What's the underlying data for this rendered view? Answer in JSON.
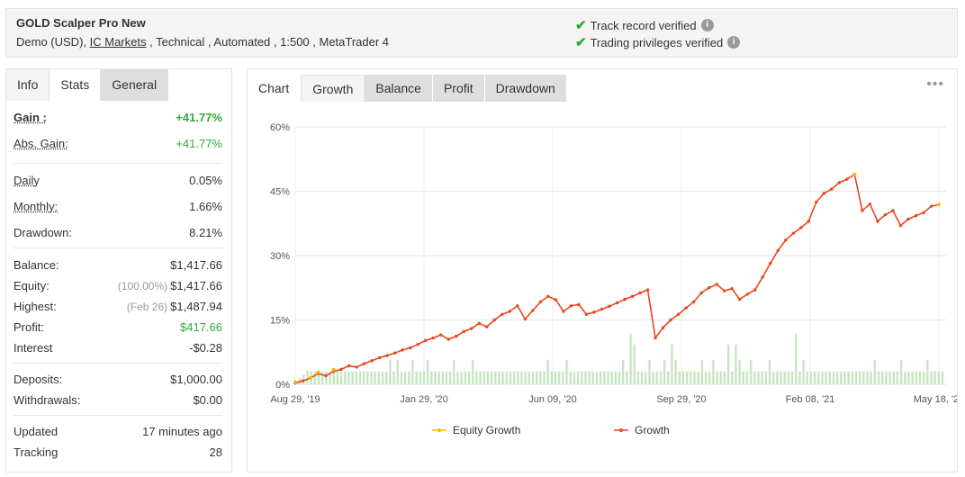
{
  "header": {
    "title": "GOLD Scalper Pro New",
    "account_prefix": "Demo (USD),",
    "broker_link": "IC Markets",
    "account_suffix": ", Technical , Automated , 1:500 , MetaTrader 4",
    "verif_track": "Track record verified",
    "verif_privileges": "Trading privileges verified"
  },
  "left_tabs": {
    "info": "Info",
    "stats": "Stats",
    "general": "General"
  },
  "stats": {
    "gain_label": "Gain :",
    "gain_value": "+41.77%",
    "abs_gain_label": "Abs. Gain:",
    "abs_gain_value": "+41.77%",
    "daily_label": "Daily",
    "daily_value": "0.05%",
    "monthly_label": "Monthly:",
    "monthly_value": "1.66%",
    "drawdown_label": "Drawdown:",
    "drawdown_value": "8.21%",
    "balance_label": "Balance:",
    "balance_value": "$1,417.66",
    "equity_label": "Equity:",
    "equity_note": "(100.00%)",
    "equity_value": "$1,417.66",
    "highest_label": "Highest:",
    "highest_note": "(Feb 26)",
    "highest_value": "$1,487.94",
    "profit_label": "Profit:",
    "profit_value": "$417.66",
    "interest_label": "Interest",
    "interest_value": "-$0.28",
    "deposits_label": "Deposits:",
    "deposits_value": "$1,000.00",
    "withdrawals_label": "Withdrawals:",
    "withdrawals_value": "$0.00",
    "updated_label": "Updated",
    "updated_value": "17 minutes ago",
    "tracking_label": "Tracking",
    "tracking_value": "28"
  },
  "chart_tabs": {
    "chart": "Chart",
    "growth": "Growth",
    "balance": "Balance",
    "profit": "Profit",
    "drawdown": "Drawdown"
  },
  "menu_icon": "•••",
  "colors": {
    "growth": "#e8471c",
    "equity": "#f5b800",
    "bars": "#c5e6bf",
    "positive": "#2eaa3c"
  },
  "chart_data": {
    "type": "line",
    "title": "",
    "xlabel": "",
    "ylabel": "",
    "ylim": [
      0,
      60
    ],
    "yticks": [
      "0%",
      "15%",
      "30%",
      "45%",
      "60%"
    ],
    "xtick_labels": [
      "Aug 29, '19",
      "Jan 29, '20",
      "Jun 09, '20",
      "Sep 29, '20",
      "Feb 08, '21",
      "May 18, '21"
    ],
    "legend_position": "bottom",
    "grid": true,
    "series": [
      {
        "name": "Equity Growth",
        "values": [
          0.5,
          1.5,
          2.8,
          3.4,
          48.9,
          41.9
        ]
      },
      {
        "name": "Growth",
        "values": [
          0.3,
          0.8,
          1.5,
          2.5,
          2.0,
          3.0,
          3.5,
          4.3,
          4.0,
          4.8,
          5.5,
          6.2,
          6.7,
          7.3,
          8.0,
          8.5,
          9.3,
          10.2,
          10.8,
          11.5,
          10.5,
          11.2,
          12.3,
          13.0,
          14.2,
          13.4,
          15.0,
          16.3,
          17.0,
          18.3,
          15.2,
          17.2,
          19.2,
          20.5,
          19.7,
          17.0,
          18.3,
          18.6,
          16.3,
          16.8,
          17.5,
          18.2,
          19.0,
          19.8,
          20.5,
          21.3,
          22.0,
          10.8,
          13.2,
          15.0,
          16.3,
          17.8,
          19.2,
          21.3,
          22.5,
          23.3,
          21.8,
          22.3,
          19.8,
          21.0,
          22.0,
          25.0,
          28.2,
          31.2,
          33.6,
          35.2,
          36.5,
          38.0,
          42.5,
          44.5,
          45.5,
          47.0,
          47.8,
          48.9,
          40.5,
          42.0,
          38.0,
          39.5,
          40.5,
          37.0,
          38.5,
          39.3,
          40.0,
          41.5,
          41.9
        ]
      }
    ],
    "trade_bars": [
      1.5,
      2.2,
      3.2,
      3.0,
      3.0,
      3.0,
      3.0,
      3.0,
      3.0,
      3.0,
      3.0,
      3.0,
      3.0,
      3.0,
      3.0,
      3.0,
      3.0,
      3.0,
      3.0,
      3.0,
      3.0,
      3.0,
      3.0,
      3.0,
      5.7,
      3.0,
      5.7,
      3.0,
      3.0,
      3.0,
      5.7,
      3.0,
      3.0,
      3.0,
      5.7,
      3.0,
      3.0,
      3.0,
      3.0,
      3.0,
      3.0,
      5.7,
      3.0,
      3.0,
      3.0,
      3.0,
      5.7,
      3.0,
      3.0,
      3.0,
      3.0,
      3.0,
      3.0,
      3.0,
      3.0,
      3.0,
      3.0,
      3.0,
      3.0,
      3.0,
      3.0,
      3.0,
      3.0,
      3.0,
      3.0,
      3.0,
      5.7,
      3.0,
      3.0,
      3.0,
      3.0,
      5.7,
      3.0,
      3.0,
      3.0,
      3.0,
      3.0,
      3.0,
      3.0,
      3.0,
      3.0,
      3.0,
      3.0,
      3.0,
      3.0,
      3.0,
      5.7,
      3.0,
      11.8,
      9.3,
      3.0,
      3.0,
      3.0,
      5.7,
      3.0,
      3.0,
      3.0,
      5.7,
      3.0,
      9.3,
      5.7,
      3.0,
      3.0,
      3.0,
      3.0,
      3.0,
      3.0,
      5.7,
      3.0,
      3.0,
      5.7,
      3.0,
      3.0,
      3.0,
      9.3,
      3.0,
      9.3,
      5.7,
      3.0,
      3.0,
      5.7,
      3.0,
      3.0,
      3.0,
      3.0,
      5.7,
      3.0,
      3.0,
      3.0,
      3.0,
      3.0,
      3.0,
      11.8,
      3.0,
      5.7,
      3.0,
      3.0,
      3.0,
      3.0,
      3.0,
      3.0,
      3.0,
      3.0,
      3.0,
      3.0,
      3.0,
      3.0,
      3.0,
      3.0,
      3.0,
      3.0,
      3.0,
      3.0,
      5.7,
      3.0,
      3.0,
      3.0,
      3.0,
      3.0,
      3.0,
      5.7,
      3.0,
      3.0,
      3.0,
      3.0,
      3.0,
      3.0,
      5.7,
      3.0,
      3.0,
      3.0,
      3.0
    ]
  }
}
